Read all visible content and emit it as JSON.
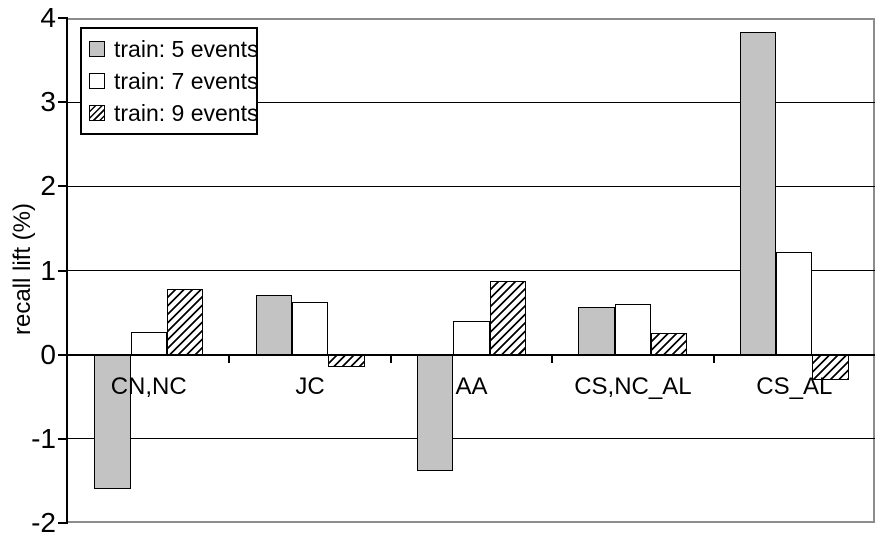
{
  "chart_data": {
    "type": "bar",
    "title": "",
    "xlabel": "",
    "ylabel": "recall lift (%)",
    "ylim": [
      -2,
      4
    ],
    "yticks": [
      "4",
      "3",
      "2",
      "1",
      "0",
      "-1",
      "-2"
    ],
    "grid": true,
    "legend_position": "top-left",
    "categories": [
      "CN,NC",
      "JC",
      "AA",
      "CS,NC_AL",
      "CS_AL"
    ],
    "series": [
      {
        "name": "train: 5 events",
        "pattern": "solid-gray",
        "values": [
          -1.6,
          0.71,
          -1.38,
          0.57,
          3.83
        ]
      },
      {
        "name": "train: 7 events",
        "pattern": "solid-white",
        "values": [
          0.27,
          0.62,
          0.4,
          0.6,
          1.22
        ]
      },
      {
        "name": "train: 9 events",
        "pattern": "diagonal-hatch",
        "values": [
          0.78,
          -0.15,
          0.88,
          0.26,
          -0.3
        ]
      }
    ],
    "colors": {
      "bar_gray": "#c3c3c3",
      "bar_white": "#ffffff",
      "bar_outline": "#000000",
      "hatch_line": "#000000",
      "gridline": "#000000",
      "axis": "#000000",
      "plot_border": "#8c8c8c",
      "background": "#ffffff",
      "text": "#000000"
    }
  }
}
